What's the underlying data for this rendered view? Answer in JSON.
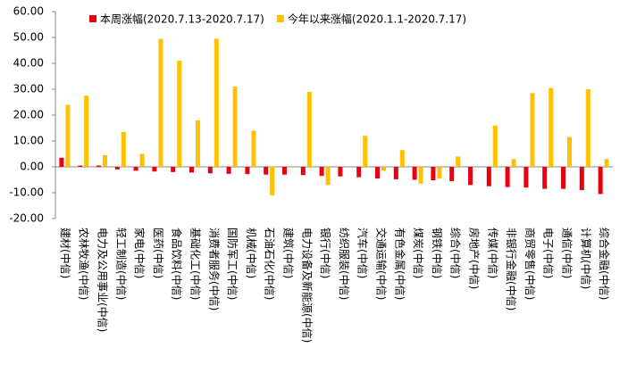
{
  "chart_data": {
    "type": "bar",
    "categories": [
      "建材(中信)",
      "农林牧渔(中信)",
      "电力及公用事业(中信)",
      "轻工制造(中信)",
      "家电(中信)",
      "医药(中信)",
      "食品饮料(中信)",
      "基础化工(中信)",
      "消费者服务(中信)",
      "国防军工(中信)",
      "机械(中信)",
      "石油石化(中信)",
      "建筑(中信)",
      "电力设备及新能源(中信)",
      "银行(中信)",
      "纺织服装(中信)",
      "汽车(中信)",
      "交通运输(中信)",
      "有色金属(中信)",
      "煤炭(中信)",
      "钢铁(中信)",
      "综合(中信)",
      "房地产(中信)",
      "传媒(中信)",
      "非银行金融(中信)",
      "商贸零售(中信)",
      "电子(中信)",
      "通信(中信)",
      "计算机(中信)",
      "综合金融(中信)"
    ],
    "series": [
      {
        "name": "本周涨幅(2020.7.13-2020.7.17)",
        "color": "#e60012",
        "values": [
          3.5,
          0.5,
          0.5,
          -1,
          -1.5,
          -1.8,
          -2,
          -2.2,
          -2.5,
          -2.7,
          -2.8,
          -3,
          -3,
          -3.2,
          -3.5,
          -3.7,
          -4,
          -4.5,
          -4.8,
          -5,
          -5.2,
          -5.5,
          -7,
          -7.5,
          -7.8,
          -8,
          -8.5,
          -8.5,
          -9,
          -10.5
        ]
      },
      {
        "name": "今年以来涨幅(2020.1.1-2020.7.17)",
        "color": "#ffc000",
        "values": [
          24,
          27.5,
          4.5,
          13.5,
          5,
          49.5,
          41,
          18,
          49.5,
          31,
          14,
          -11,
          0.3,
          29,
          -7,
          0,
          12,
          -1.5,
          6.5,
          -6.5,
          -4.5,
          4,
          0,
          16,
          3,
          28.5,
          30.5,
          11.5,
          30,
          3
        ]
      }
    ],
    "ylim": [
      -20,
      60
    ],
    "yticks": [
      {
        "value": -20,
        "label": "-20.00"
      },
      {
        "value": -10,
        "label": "-10.00"
      },
      {
        "value": 0,
        "label": "0.00"
      },
      {
        "value": 10,
        "label": "10.00"
      },
      {
        "value": 20,
        "label": "20.00"
      },
      {
        "value": 30,
        "label": "30.00"
      },
      {
        "value": 40,
        "label": "40.00"
      },
      {
        "value": 50,
        "label": "50.00"
      },
      {
        "value": 60,
        "label": "60.00"
      }
    ],
    "legend": "top"
  }
}
